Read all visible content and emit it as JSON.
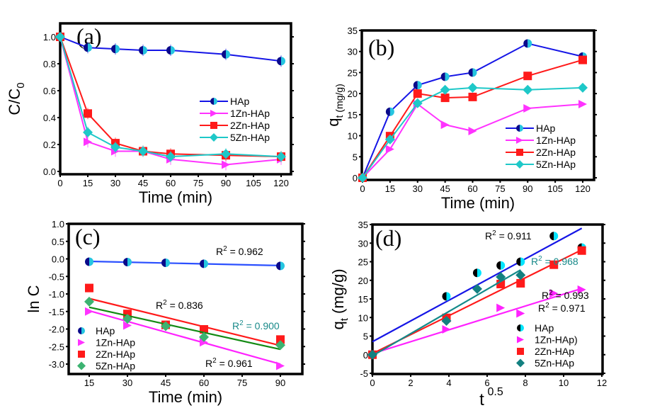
{
  "chart_data": [
    {
      "id": "a",
      "type": "line",
      "panel_label": "(a)",
      "xlabel": "Time (min)",
      "ylabel": "C/C",
      "ylabel_sub": "0",
      "xlim": [
        0,
        124
      ],
      "ylim": [
        0,
        1.1
      ],
      "xticks": [
        0,
        15,
        30,
        45,
        60,
        75,
        90,
        105,
        120
      ],
      "yticks": [
        0.0,
        0.2,
        0.4,
        0.6,
        0.8,
        1.0
      ],
      "ytick_labels": [
        "0.0",
        "0.2",
        "0.4",
        "0.6",
        "0.8",
        "1.0"
      ],
      "legend_position": "center-right",
      "x": [
        0,
        15,
        30,
        45,
        60,
        90,
        120
      ],
      "series": [
        {
          "name": "HAp",
          "color": "#1515e6",
          "marker": "half-circle",
          "values": [
            1.0,
            0.92,
            0.91,
            0.9,
            0.9,
            0.87,
            0.82
          ]
        },
        {
          "name": "1Zn-HAp",
          "color": "#ff33ff",
          "marker": "triangle-right",
          "values": [
            1.0,
            0.22,
            0.15,
            0.15,
            0.09,
            0.05,
            0.09
          ]
        },
        {
          "name": "2Zn-HAp",
          "color": "#ff1a1a",
          "marker": "square",
          "values": [
            1.0,
            0.43,
            0.21,
            0.15,
            0.13,
            0.12,
            0.11
          ]
        },
        {
          "name": "5Zn-HAp",
          "color": "#1ec8c8",
          "marker": "diamond",
          "values": [
            1.0,
            0.29,
            0.18,
            0.15,
            0.11,
            0.13,
            0.11
          ]
        }
      ]
    },
    {
      "id": "b",
      "type": "line",
      "panel_label": "(b)",
      "xlabel": "Time (min)",
      "ylabel": "q",
      "ylabel_sub": "t (mg/g)",
      "xlim": [
        0,
        124
      ],
      "ylim": [
        0,
        35
      ],
      "xticks": [
        0,
        15,
        30,
        45,
        60,
        75,
        90,
        105,
        120
      ],
      "yticks": [
        0,
        5,
        10,
        15,
        20,
        25,
        30,
        35
      ],
      "ytick_labels": [
        "0",
        "5",
        "10",
        "15",
        "20",
        "25",
        "30",
        "35"
      ],
      "legend_position": "lower-right",
      "x": [
        0,
        15,
        30,
        45,
        60,
        90,
        120
      ],
      "series": [
        {
          "name": "HAp",
          "color": "#1515e6",
          "marker": "half-circle",
          "values": [
            0,
            15.7,
            22.0,
            24.0,
            25.0,
            31.9,
            28.8
          ]
        },
        {
          "name": "1Zn-HAp",
          "color": "#ff33ff",
          "marker": "triangle-right",
          "values": [
            0,
            6.8,
            17.5,
            12.6,
            11.1,
            16.5,
            17.5
          ]
        },
        {
          "name": "2Zn-HAp",
          "color": "#ff1a1a",
          "marker": "square",
          "values": [
            0,
            9.9,
            20.0,
            19.0,
            19.2,
            24.2,
            28.0
          ]
        },
        {
          "name": "5Zn-HAp",
          "color": "#1ec8c8",
          "marker": "diamond",
          "values": [
            0,
            9.1,
            17.7,
            20.9,
            21.4,
            20.9,
            21.4
          ]
        }
      ]
    },
    {
      "id": "c",
      "type": "scatter",
      "panel_label": "(c)",
      "xlabel": "Time (min)",
      "ylabel": "ln C",
      "xlim": [
        7,
        99
      ],
      "ylim": [
        -3.25,
        1.0
      ],
      "xticks": [
        15,
        30,
        45,
        60,
        75,
        90
      ],
      "yticks": [
        1.0,
        0.5,
        0.0,
        -0.5,
        -1.0,
        -1.5,
        -2.0,
        -2.5,
        -3.0
      ],
      "ytick_labels": [
        "1.0",
        "0.5",
        "0.0",
        "-0.5",
        "-1.0",
        "-1.5",
        "-2.0",
        "-2.5",
        "-3.0"
      ],
      "legend_position": "lower-left",
      "x": [
        15,
        30,
        45,
        60,
        90
      ],
      "series": [
        {
          "name": "HAp",
          "color": "#1515e6",
          "marker": "half-circle",
          "values": [
            -0.08,
            -0.09,
            -0.11,
            -0.14,
            -0.2
          ],
          "fit": [
            -0.07,
            -0.19
          ],
          "fit_color": "#2b50ff",
          "r2": "R² = 0.962",
          "r2_color": "#000000"
        },
        {
          "name": "1Zn-HAp",
          "color": "#ff33ff",
          "marker": "triangle-right",
          "values": [
            -1.5,
            -1.9,
            -1.9,
            -2.38,
            -3.05
          ],
          "fit": [
            -1.48,
            -3.0
          ],
          "fit_color": "#ff22ff",
          "r2": "R² = 0.961",
          "r2_color": "#000000"
        },
        {
          "name": "2Zn-HAp",
          "color": "#ff1a1a",
          "marker": "square",
          "values": [
            -0.83,
            -1.57,
            -1.88,
            -2.01,
            -2.3
          ],
          "fit": [
            -1.13,
            -2.47
          ],
          "fit_color": "#ff1a1a",
          "r2": "R² = 0.836",
          "r2_color": "#000000"
        },
        {
          "name": "5Zn-HAp",
          "color": "#3cb371",
          "marker": "diamond",
          "values": [
            -1.22,
            -1.71,
            -1.92,
            -2.23,
            -2.46
          ],
          "fit": [
            -1.38,
            -2.58
          ],
          "fit_color": "#138a13",
          "r2": "R² = 0.900",
          "r2_color": "#1a8a8a"
        }
      ]
    },
    {
      "id": "d",
      "type": "scatter",
      "panel_label": "(d)",
      "xlabel": "t",
      "xlabel_sup": "0.5",
      "ylabel": "q",
      "ylabel_sub": "t",
      "ylabel_rest": " (mg/g)",
      "xlim": [
        0,
        12
      ],
      "ylim": [
        -5,
        35
      ],
      "xticks": [
        0,
        2,
        4,
        6,
        8,
        10,
        12
      ],
      "yticks": [
        -5,
        0,
        5,
        10,
        15,
        20,
        25,
        30,
        35
      ],
      "ytick_labels": [
        "-5",
        "0",
        "5",
        "10",
        "15",
        "20",
        "25",
        "30",
        "35"
      ],
      "legend_position": "lower-right",
      "series": [
        {
          "name": "HAp",
          "color": "#00e5ff",
          "marker": "half-circle-dark",
          "x": [
            0,
            3.87,
            5.48,
            6.71,
            7.75,
            9.49,
            10.95
          ],
          "values": [
            0,
            15.7,
            22.0,
            24.0,
            25.0,
            31.9,
            28.8
          ],
          "fit_x": [
            0,
            10.95
          ],
          "fit": [
            3.5,
            34.0
          ],
          "fit_color": "#1515e6",
          "r2": "R² = 0.911",
          "r2_color": "#000000"
        },
        {
          "name": "1Zn-HAp)",
          "color": "#ff22ff",
          "marker": "triangle-right",
          "x": [
            0,
            3.87,
            6.71,
            7.75,
            9.49,
            10.95
          ],
          "values": [
            0,
            6.8,
            12.6,
            11.1,
            16.5,
            17.5
          ],
          "fit_x": [
            0,
            10.95
          ],
          "fit": [
            0.3,
            17.8
          ],
          "fit_color": "#ff22ff",
          "r2": "R² = 0.971",
          "r2_color": "#000000"
        },
        {
          "name": "2Zn-HAp",
          "color": "#ff1a1a",
          "marker": "square",
          "x": [
            0,
            3.87,
            6.71,
            7.75,
            9.49,
            10.95
          ],
          "values": [
            0,
            9.9,
            19.0,
            19.2,
            24.2,
            28.0
          ],
          "fit_x": [
            0,
            10.95
          ],
          "fit": [
            0.3,
            28.2
          ],
          "fit_color": "#ff1a1a",
          "r2": "R² = 0.993",
          "r2_color": "#000000"
        },
        {
          "name": "5Zn-HAp",
          "color": "#138080",
          "marker": "diamond",
          "x": [
            0,
            3.87,
            5.48,
            6.71,
            7.75
          ],
          "values": [
            0,
            9.1,
            17.7,
            20.9,
            21.4
          ],
          "fit_x": [
            0,
            7.75
          ],
          "fit": [
            -0.3,
            22.8
          ],
          "fit_color": "#138a8a",
          "r2": "R² = 0.968",
          "r2_color": "#1a8a8a"
        }
      ]
    }
  ]
}
